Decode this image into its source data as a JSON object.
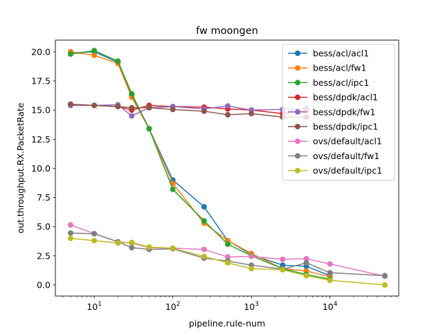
{
  "chart_data": {
    "type": "line",
    "title": "fw moongen",
    "xlabel": "pipeline.rule-num",
    "ylabel": "out.throughput.RX.PacketRate",
    "xscale": "log",
    "xlim": [
      3.2,
      75000
    ],
    "ylim": [
      -0.95,
      21.0
    ],
    "xticks": [
      {
        "value": 10,
        "base": "10",
        "exp": "1"
      },
      {
        "value": 100,
        "base": "10",
        "exp": "2"
      },
      {
        "value": 1000,
        "base": "10",
        "exp": "3"
      },
      {
        "value": 10000,
        "base": "10",
        "exp": "4"
      }
    ],
    "yticks": [
      {
        "value": 0,
        "label": "0.0"
      },
      {
        "value": 2.5,
        "label": "2.5"
      },
      {
        "value": 5,
        "label": "5.0"
      },
      {
        "value": 7.5,
        "label": "7.5"
      },
      {
        "value": 10,
        "label": "10.0"
      },
      {
        "value": 12.5,
        "label": "12.5"
      },
      {
        "value": 15,
        "label": "15.0"
      },
      {
        "value": 17.5,
        "label": "17.5"
      },
      {
        "value": 20,
        "label": "20.0"
      }
    ],
    "grid": false,
    "legend_position": "upper right",
    "series": [
      {
        "name": "bess/acl/acl1",
        "color": "#1f77b4",
        "x": [
          5,
          10,
          20,
          30,
          50,
          100,
          250,
          500,
          1000,
          2500,
          5000,
          10000
        ],
        "y": [
          19.9,
          20.0,
          19.1,
          16.3,
          13.4,
          9.0,
          6.7,
          3.8,
          2.6,
          1.7,
          1.6,
          0.8
        ]
      },
      {
        "name": "bess/acl/fw1",
        "color": "#ff7f0e",
        "x": [
          5,
          10,
          20,
          30,
          50,
          100,
          250,
          500,
          1000,
          2500,
          5000,
          10000
        ],
        "y": [
          20.0,
          19.7,
          19.0,
          16.1,
          13.4,
          8.7,
          5.3,
          3.8,
          2.7,
          1.4,
          1.2,
          0.7
        ]
      },
      {
        "name": "bess/acl/ipc1",
        "color": "#2ca02c",
        "x": [
          5,
          10,
          20,
          30,
          50,
          100,
          250,
          500,
          1000,
          2500,
          5000,
          10000
        ],
        "y": [
          19.8,
          20.1,
          19.2,
          16.4,
          13.4,
          8.2,
          5.5,
          3.5,
          2.5,
          1.4,
          0.9,
          0.5
        ]
      },
      {
        "name": "bess/dpdk/acl1",
        "color": "#d62728",
        "x": [
          5,
          10,
          20,
          30,
          50,
          100,
          250,
          500,
          1000,
          2500,
          5000
        ],
        "y": [
          15.5,
          15.4,
          15.3,
          15.0,
          15.4,
          15.3,
          15.25,
          15.1,
          15.0,
          14.7,
          15.0
        ]
      },
      {
        "name": "bess/dpdk/fw1",
        "color": "#9467bd",
        "x": [
          5,
          10,
          20,
          30,
          50,
          100,
          250,
          500,
          1000,
          2500,
          5000
        ],
        "y": [
          15.4,
          15.4,
          15.45,
          14.5,
          15.2,
          15.3,
          15.1,
          15.35,
          15.0,
          15.05,
          15.15
        ]
      },
      {
        "name": "bess/dpdk/ipc1",
        "color": "#8c564b",
        "x": [
          5,
          10,
          20,
          30,
          50,
          100,
          250,
          500,
          1000,
          2500,
          5000
        ],
        "y": [
          15.5,
          15.4,
          15.3,
          15.2,
          15.2,
          15.05,
          14.9,
          14.6,
          14.7,
          14.4,
          14.4
        ]
      },
      {
        "name": "ovs/default/acl1",
        "color": "#e377c2",
        "x": [
          5,
          10,
          20,
          30,
          50,
          100,
          250,
          500,
          1000,
          2500,
          5000,
          10000,
          50000
        ],
        "y": [
          5.15,
          4.4,
          3.7,
          3.6,
          3.2,
          3.15,
          3.05,
          2.4,
          2.45,
          2.2,
          2.25,
          1.8,
          0.75
        ]
      },
      {
        "name": "ovs/default/fw1",
        "color": "#7f7f7f",
        "x": [
          5,
          10,
          20,
          30,
          50,
          100,
          250,
          500,
          1000,
          2500,
          5000,
          10000,
          50000
        ],
        "y": [
          4.45,
          4.4,
          3.7,
          3.2,
          3.05,
          3.1,
          2.3,
          2.05,
          1.7,
          1.35,
          1.9,
          1.05,
          0.8
        ]
      },
      {
        "name": "ovs/default/ipc1",
        "color": "#bcbd22",
        "x": [
          5,
          10,
          20,
          30,
          50,
          100,
          250,
          500,
          1000,
          2500,
          5000,
          10000,
          50000
        ],
        "y": [
          4.0,
          3.8,
          3.6,
          3.65,
          3.25,
          3.15,
          2.45,
          1.9,
          1.4,
          1.3,
          0.8,
          0.4,
          0.0
        ]
      }
    ]
  }
}
